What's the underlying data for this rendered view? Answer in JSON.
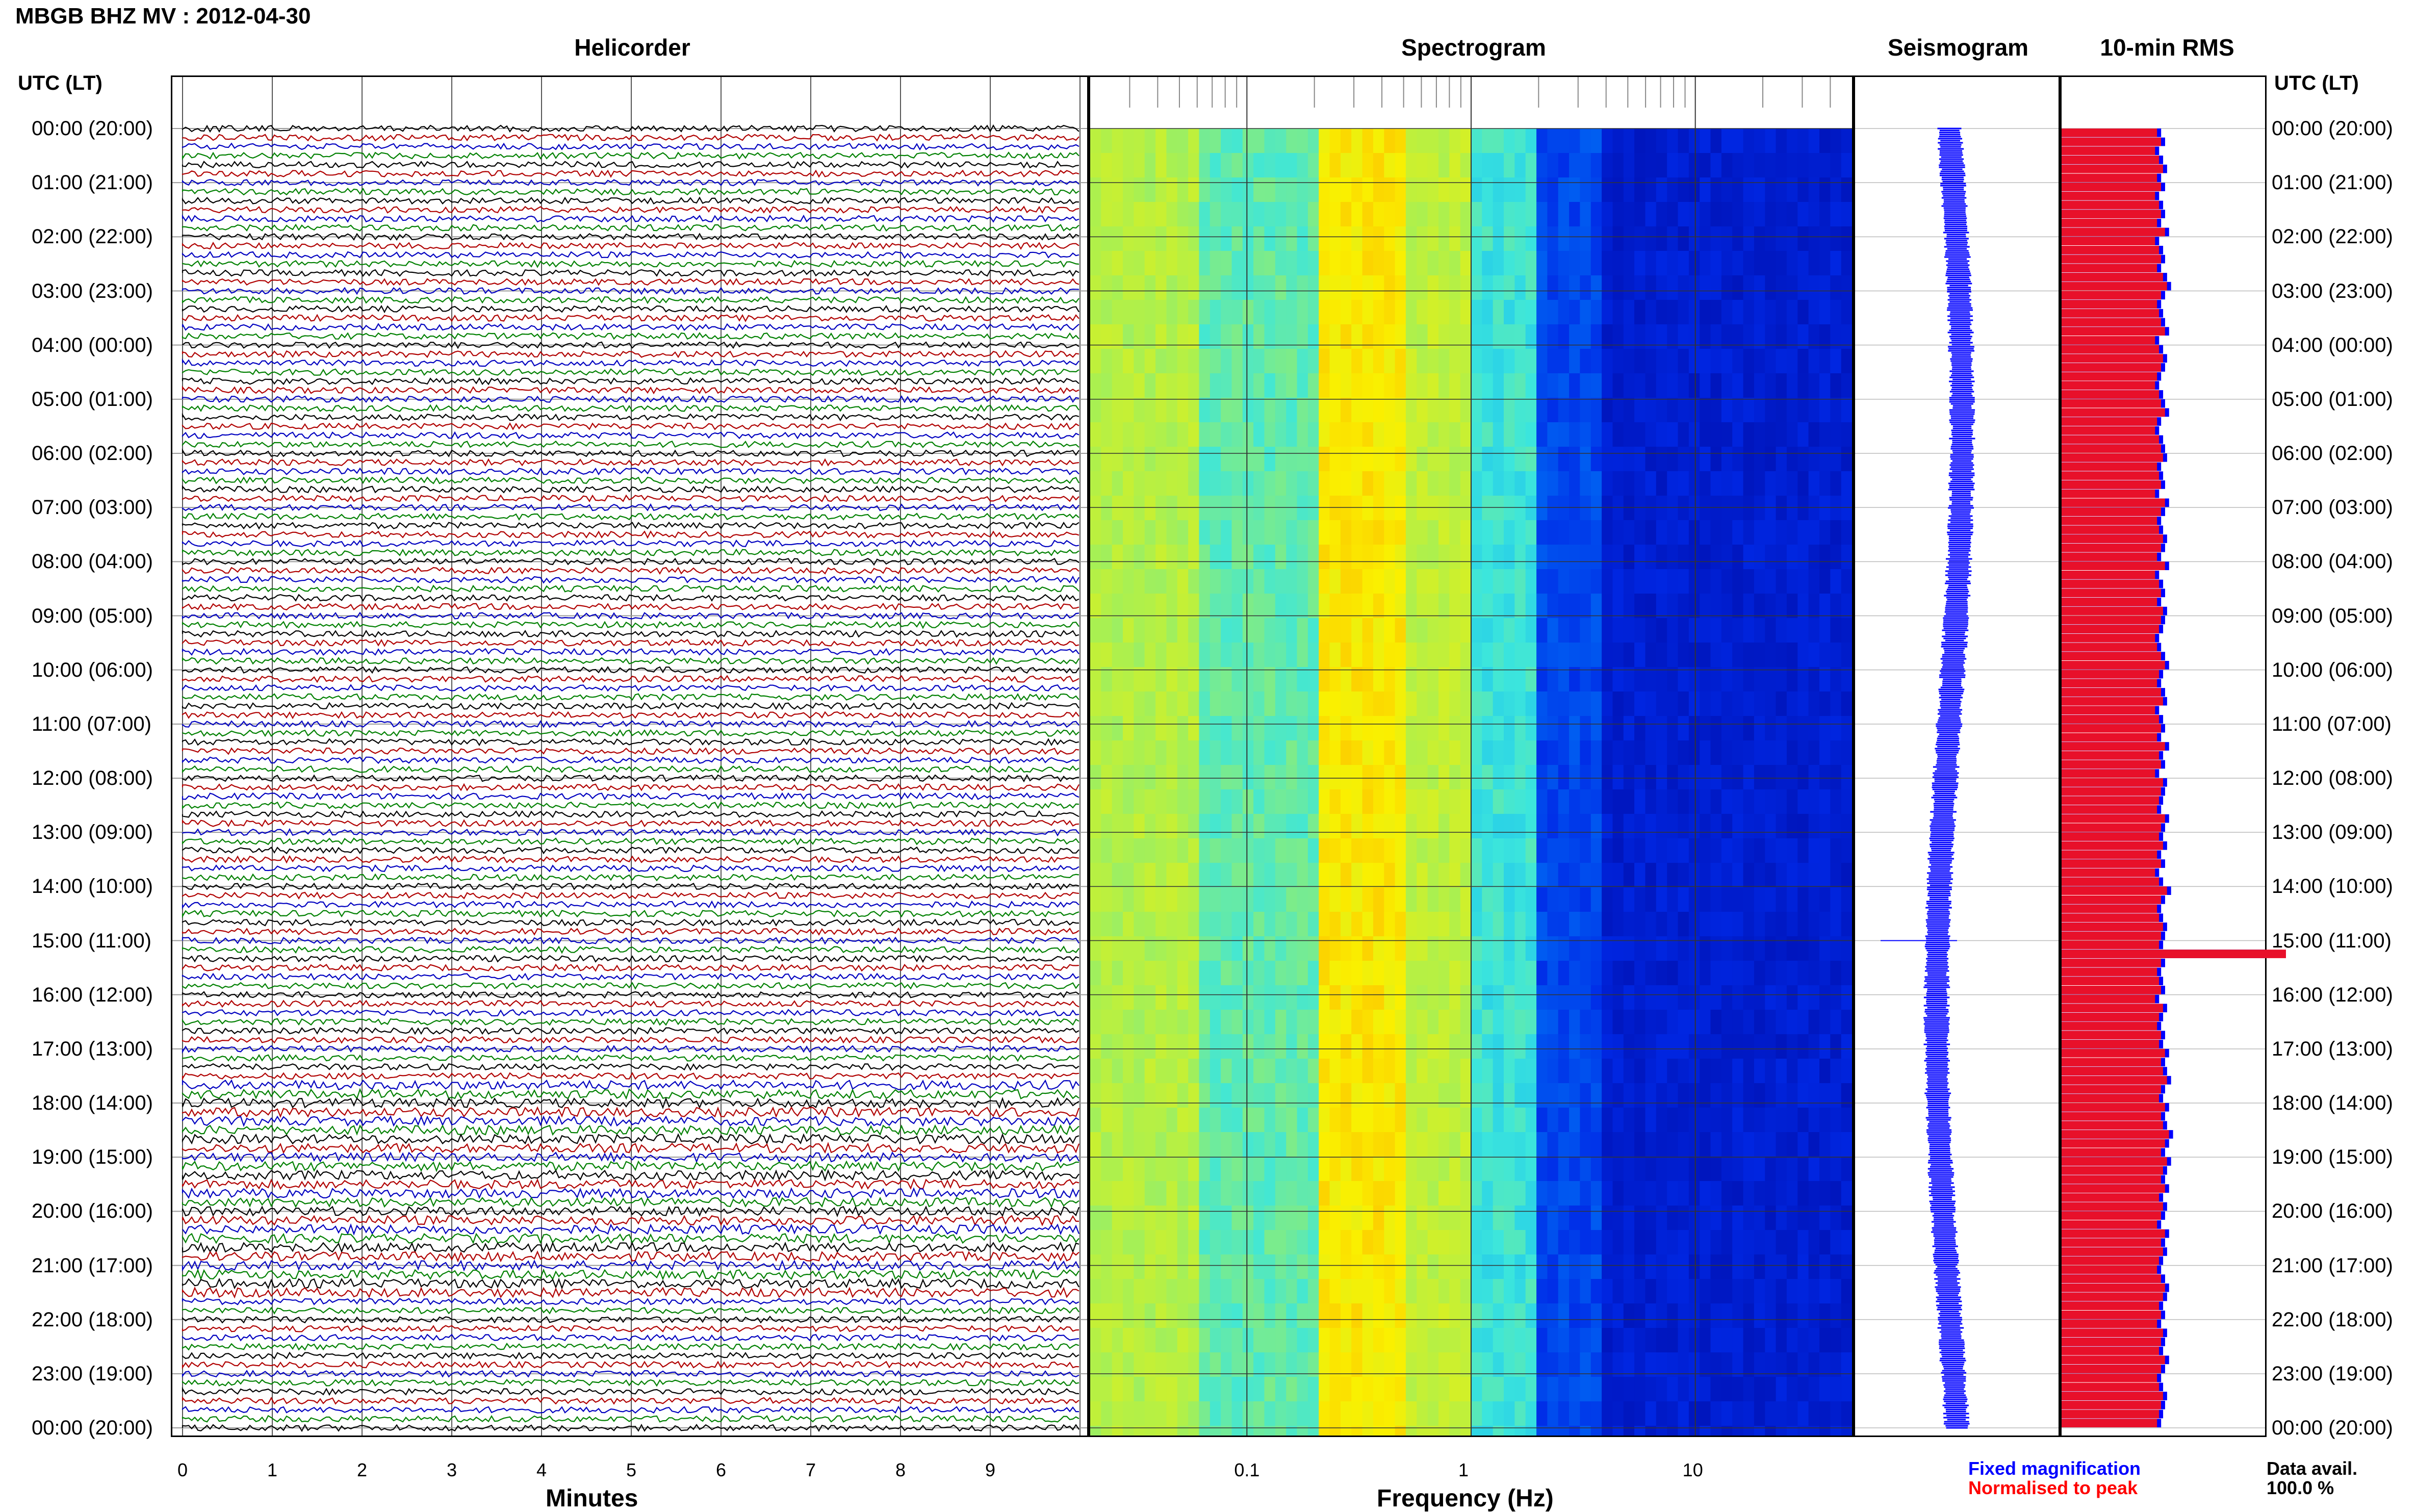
{
  "header": {
    "title": "MBGB BHZ MV : 2012-04-30",
    "utc_label_left": "UTC (LT)",
    "utc_label_right": "UTC (LT)"
  },
  "panels": {
    "helicorder": "Helicorder",
    "spectrogram": "Spectrogram",
    "seismogram": "Seismogram",
    "rms": "10-min RMS"
  },
  "time_labels": [
    "00:00 (20:00)",
    "01:00 (21:00)",
    "02:00 (22:00)",
    "03:00 (23:00)",
    "04:00 (00:00)",
    "05:00 (01:00)",
    "06:00 (02:00)",
    "07:00 (03:00)",
    "08:00 (04:00)",
    "09:00 (05:00)",
    "10:00 (06:00)",
    "11:00 (07:00)",
    "12:00 (08:00)",
    "13:00 (09:00)",
    "14:00 (10:00)",
    "15:00 (11:00)",
    "16:00 (12:00)",
    "17:00 (13:00)",
    "18:00 (14:00)",
    "19:00 (15:00)",
    "20:00 (16:00)",
    "21:00 (17:00)",
    "22:00 (18:00)",
    "23:00 (19:00)",
    "00:00 (20:00)"
  ],
  "axes": {
    "minutes_label": "Minutes",
    "minutes_ticks": [
      "0",
      "1",
      "2",
      "3",
      "4",
      "5",
      "6",
      "7",
      "8",
      "9"
    ],
    "frequency_label": "Frequency (Hz)",
    "frequency_ticks": [
      "0.1",
      "1",
      "10"
    ]
  },
  "legend": {
    "fixed": "Fixed magnification",
    "normalised": "Normalised to peak",
    "data_avail_label": "Data avail.",
    "data_avail_value": "100.0 %"
  },
  "colors": {
    "trace_cycle": [
      "#000000",
      "#b00000",
      "#0000c0",
      "#008000"
    ],
    "rms_fill": "#e8102a",
    "rms_fixed": "#0000ff",
    "seismogram": "#0000ff"
  },
  "chart_data": {
    "type": "heatmap",
    "helicorder": {
      "rows_per_hour": 6,
      "row_duration_minutes": 10,
      "hours": 24,
      "xlim_minutes": [
        0,
        10
      ],
      "notable_event_utc": "15:00"
    },
    "spectrogram": {
      "xscale": "log",
      "xlim_hz": [
        0.02,
        50
      ],
      "dominant_band_hz": [
        0.2,
        1.0
      ]
    },
    "rms_10min": {
      "count": 144,
      "relative_values": [
        0.48,
        0.5,
        0.47,
        0.49,
        0.51,
        0.48,
        0.5,
        0.47,
        0.49,
        0.5,
        0.48,
        0.52,
        0.47,
        0.49,
        0.5,
        0.48,
        0.51,
        0.53,
        0.5,
        0.48,
        0.49,
        0.5,
        0.52,
        0.47,
        0.49,
        0.51,
        0.5,
        0.48,
        0.47,
        0.49,
        0.5,
        0.52,
        0.48,
        0.47,
        0.49,
        0.5,
        0.51,
        0.48,
        0.49,
        0.5,
        0.47,
        0.52,
        0.5,
        0.48,
        0.49,
        0.51,
        0.5,
        0.48,
        0.52,
        0.47,
        0.49,
        0.5,
        0.48,
        0.51,
        0.5,
        0.49,
        0.47,
        0.48,
        0.5,
        0.52,
        0.49,
        0.48,
        0.5,
        0.51,
        0.47,
        0.49,
        0.5,
        0.48,
        0.52,
        0.49,
        0.5,
        0.47,
        0.51,
        0.5,
        0.49,
        0.48,
        0.52,
        0.5,
        0.49,
        0.51,
        0.48,
        0.5,
        0.47,
        0.49,
        0.53,
        0.5,
        0.48,
        0.49,
        0.51,
        0.5,
        0.49,
        1.0,
        0.5,
        0.48,
        0.49,
        0.5,
        0.47,
        0.51,
        0.49,
        0.48,
        0.5,
        0.49,
        0.52,
        0.5,
        0.51,
        0.53,
        0.5,
        0.49,
        0.52,
        0.5,
        0.51,
        0.54,
        0.52,
        0.5,
        0.53,
        0.51,
        0.5,
        0.52,
        0.49,
        0.51,
        0.5,
        0.48,
        0.52,
        0.5,
        0.51,
        0.49,
        0.48,
        0.5,
        0.52,
        0.51,
        0.49,
        0.5,
        0.48,
        0.51,
        0.5,
        0.49,
        0.52,
        0.5,
        0.48,
        0.49,
        0.51,
        0.5,
        0.49,
        0.48
      ]
    }
  }
}
